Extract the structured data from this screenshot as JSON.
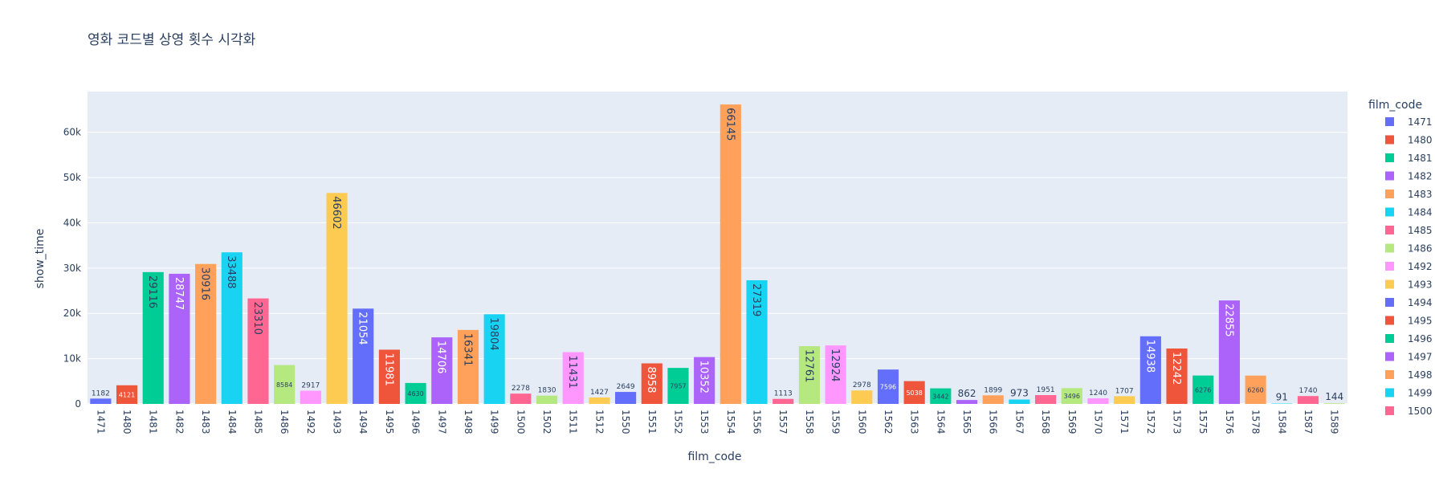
{
  "chart_data": {
    "type": "bar",
    "title": "영화 코드별 상영 횟수 시각화",
    "xlabel": "film_code",
    "ylabel": "show_time",
    "ylim": [
      0,
      69000
    ],
    "yticks": [
      0,
      10000,
      20000,
      30000,
      40000,
      50000,
      60000
    ],
    "ytick_labels": [
      "0",
      "10k",
      "20k",
      "30k",
      "40k",
      "50k",
      "60k"
    ],
    "grid": true,
    "legend_title": "film_code",
    "legend_position": "right",
    "categories": [
      "1471",
      "1480",
      "1481",
      "1482",
      "1483",
      "1484",
      "1485",
      "1486",
      "1492",
      "1493",
      "1494",
      "1495",
      "1496",
      "1497",
      "1498",
      "1499",
      "1500",
      "1502",
      "1511",
      "1512",
      "1550",
      "1551",
      "1552",
      "1553",
      "1554",
      "1556",
      "1557",
      "1558",
      "1559",
      "1560",
      "1562",
      "1563",
      "1564",
      "1565",
      "1566",
      "1567",
      "1568",
      "1569",
      "1570",
      "1571",
      "1572",
      "1573",
      "1575",
      "1576",
      "1578",
      "1584",
      "1587",
      "1589"
    ],
    "values": [
      1182,
      4121,
      29116,
      28747,
      30916,
      33488,
      23310,
      8584,
      2917,
      46602,
      21054,
      11981,
      4630,
      14706,
      16341,
      19804,
      2278,
      1830,
      11431,
      1427,
      2649,
      8958,
      7957,
      10352,
      66145,
      27319,
      1113,
      12761,
      12924,
      2978,
      7596,
      5038,
      3442,
      862,
      1899,
      973,
      1951,
      3496,
      1240,
      1707,
      14938,
      12242,
      6276,
      22855,
      6260,
      91,
      1740,
      144
    ],
    "legend_items": [
      "1471",
      "1480",
      "1481",
      "1482",
      "1483",
      "1484",
      "1485",
      "1486",
      "1492",
      "1493",
      "1494",
      "1495",
      "1496",
      "1497",
      "1498",
      "1499",
      "1500"
    ],
    "palette": [
      "#636efa",
      "#EF553B",
      "#00cc96",
      "#ab63fa",
      "#FFA15A",
      "#19d3f3",
      "#FF6692",
      "#B6E880",
      "#FF97FF",
      "#FECB52"
    ],
    "plot_bg": "#e5ecf6"
  }
}
